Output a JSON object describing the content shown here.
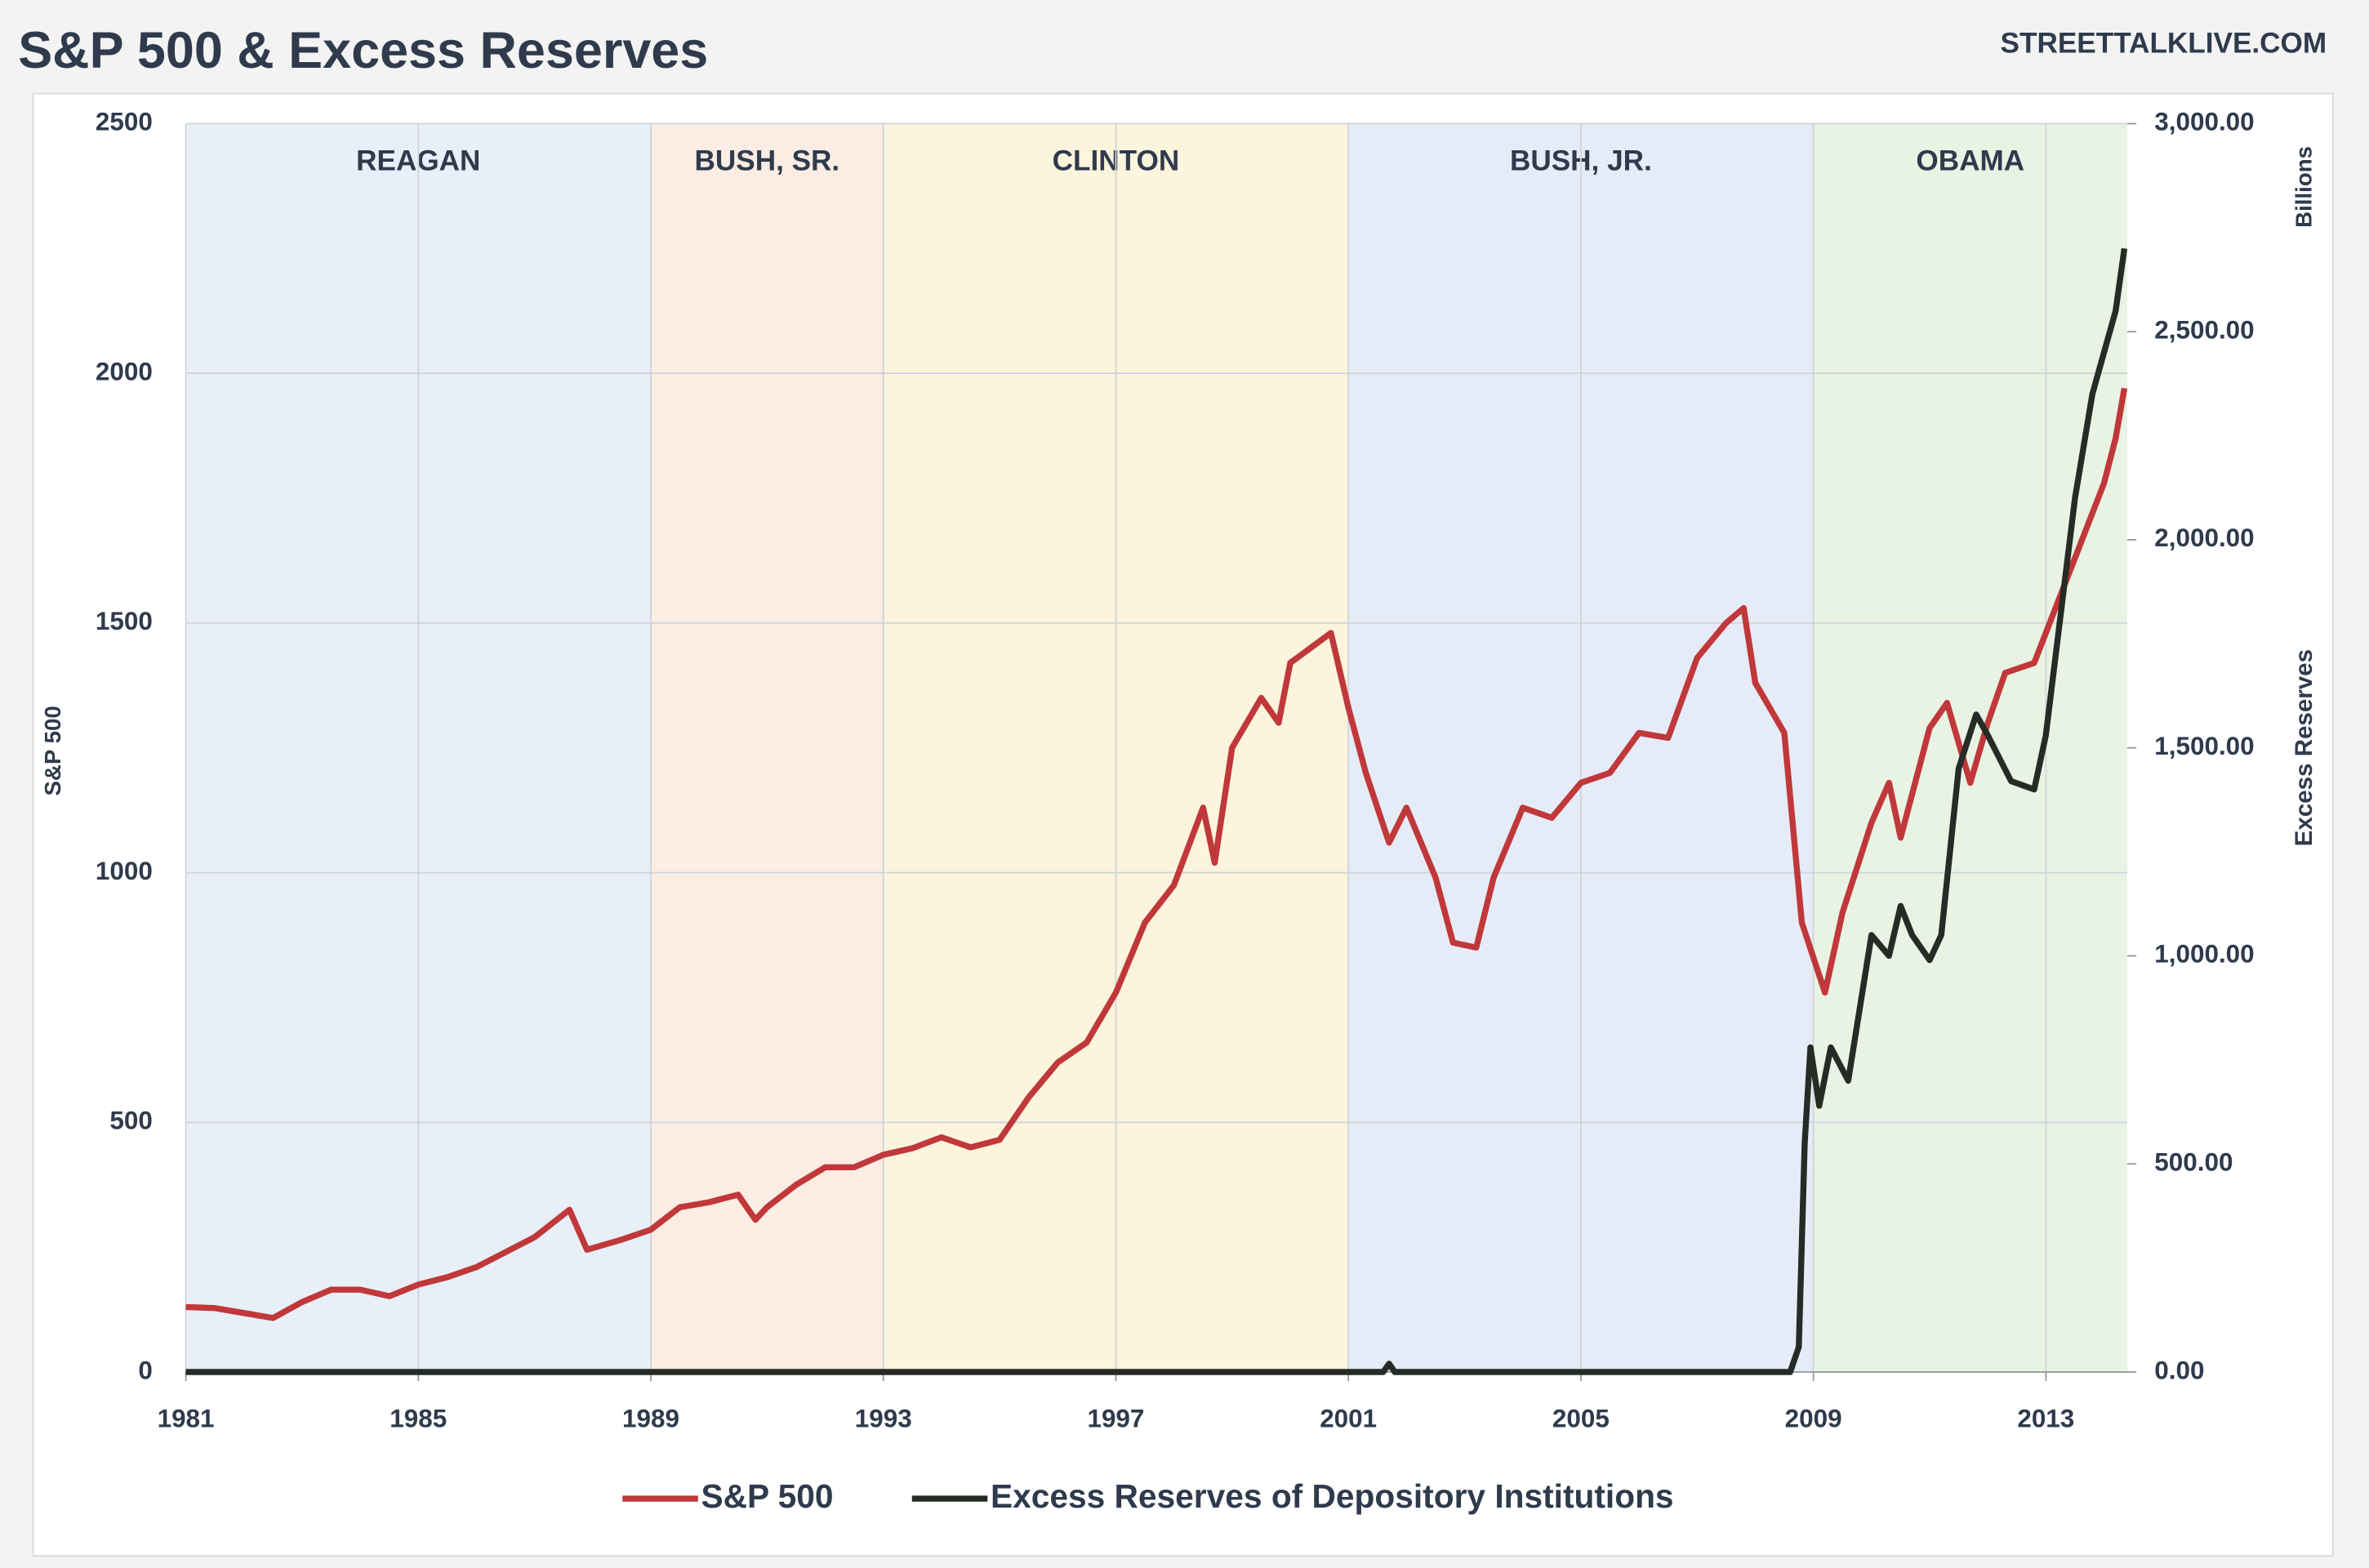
{
  "chart_data": {
    "type": "line",
    "title": "S&P 500 & Excess Reserves",
    "source": "STREETTALKLIVE.COM",
    "y_label": "S&P 500",
    "y2_label": "Excess  Reserves",
    "y2_unit": "Billions",
    "xlim": [
      1981,
      2014.4
    ],
    "xticks": [
      1981,
      1985,
      1989,
      1993,
      1997,
      2001,
      2005,
      2009,
      2013
    ],
    "ylim": [
      0,
      2500
    ],
    "yticks": [
      0,
      500,
      1000,
      1500,
      2000,
      2500
    ],
    "y2lim": [
      0,
      3000
    ],
    "y2ticks": [
      {
        "value": 0,
        "label": "0.00"
      },
      {
        "value": 500,
        "label": "500.00"
      },
      {
        "value": 1000,
        "label": "1,000.00"
      },
      {
        "value": 1500,
        "label": "1,500.00"
      },
      {
        "value": 2000,
        "label": "2,000.00"
      },
      {
        "value": 2500,
        "label": "2,500.00"
      },
      {
        "value": 3000,
        "label": "3,000.00"
      }
    ],
    "grid": true,
    "legend": "bottom",
    "periods": [
      {
        "label": "REAGAN",
        "start": 1981,
        "end": 1989,
        "color": "#e8eff8"
      },
      {
        "label": "BUSH, SR.",
        "start": 1989,
        "end": 1993,
        "color": "#fbece4"
      },
      {
        "label": "CLINTON",
        "start": 1993,
        "end": 2001,
        "color": "#fdf4dd"
      },
      {
        "label": "BUSH, JR.",
        "start": 2001,
        "end": 2009,
        "color": "#e6ecf7"
      },
      {
        "label": "OBAMA",
        "start": 2009,
        "end": 2014.4,
        "color": "#e9f3e4"
      }
    ],
    "series": [
      {
        "name": "S&P 500",
        "color": "#c0383a",
        "x": [
          1981.0,
          1981.5,
          1982.0,
          1982.5,
          1983.0,
          1983.5,
          1984.0,
          1984.5,
          1985.0,
          1985.5,
          1986.0,
          1986.5,
          1987.0,
          1987.6,
          1987.9,
          1988.5,
          1989.0,
          1989.5,
          1990.0,
          1990.5,
          1990.8,
          1991.0,
          1991.5,
          1992.0,
          1992.5,
          1993.0,
          1993.5,
          1994.0,
          1994.5,
          1995.0,
          1995.5,
          1996.0,
          1996.5,
          1997.0,
          1997.5,
          1998.0,
          1998.5,
          1998.7,
          1999.0,
          1999.5,
          1999.8,
          2000.0,
          2000.7,
          2001.0,
          2001.3,
          2001.7,
          2002.0,
          2002.5,
          2002.8,
          2003.2,
          2003.5,
          2004.0,
          2004.5,
          2005.0,
          2005.5,
          2006.0,
          2006.5,
          2007.0,
          2007.5,
          2007.8,
          2008.0,
          2008.5,
          2008.8,
          2009.2,
          2009.5,
          2010.0,
          2010.3,
          2010.5,
          2011.0,
          2011.3,
          2011.7,
          2012.0,
          2012.3,
          2012.8,
          2013.0,
          2013.5,
          2014.0,
          2014.2,
          2014.35
        ],
        "values": [
          130,
          128,
          118,
          108,
          140,
          165,
          165,
          152,
          175,
          190,
          210,
          240,
          270,
          325,
          245,
          265,
          285,
          330,
          340,
          355,
          305,
          330,
          375,
          410,
          410,
          435,
          448,
          470,
          450,
          465,
          550,
          620,
          660,
          760,
          900,
          975,
          1130,
          1020,
          1250,
          1350,
          1300,
          1420,
          1480,
          1330,
          1200,
          1060,
          1130,
          990,
          860,
          850,
          990,
          1130,
          1110,
          1180,
          1200,
          1280,
          1270,
          1430,
          1500,
          1530,
          1380,
          1280,
          900,
          760,
          920,
          1100,
          1180,
          1070,
          1290,
          1340,
          1180,
          1300,
          1400,
          1420,
          1480,
          1630,
          1780,
          1870,
          1970
        ]
      },
      {
        "name": "Excess Reserves of Depository Institutions",
        "color": "#262b26",
        "axis": "y2",
        "x": [
          1981.0,
          2001.6,
          2001.7,
          2001.8,
          2008.6,
          2008.75,
          2008.85,
          2008.95,
          2009.1,
          2009.3,
          2009.6,
          2010.0,
          2010.3,
          2010.5,
          2010.7,
          2011.0,
          2011.2,
          2011.5,
          2011.8,
          2012.0,
          2012.4,
          2012.8,
          2013.0,
          2013.5,
          2013.8,
          2014.0,
          2014.2,
          2014.35
        ],
        "values": [
          0,
          0,
          20,
          0,
          0,
          60,
          550,
          780,
          640,
          780,
          700,
          1050,
          1000,
          1120,
          1050,
          990,
          1050,
          1450,
          1580,
          1530,
          1420,
          1400,
          1530,
          2100,
          2350,
          2450,
          2550,
          2700
        ]
      }
    ]
  }
}
